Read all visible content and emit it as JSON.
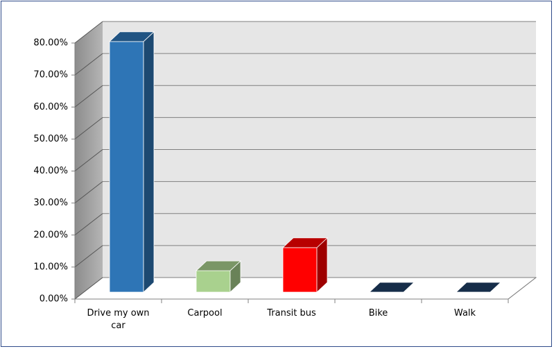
{
  "chart_data": {
    "type": "bar3d",
    "categories": [
      "Drive my own car",
      "Carpool",
      "Transit bus",
      "Bike",
      "Walk"
    ],
    "values": [
      78.3,
      6.7,
      13.9,
      0,
      0
    ],
    "colors": [
      "#2e75b6",
      "#a9d18e",
      "#ff0000",
      "#1f3f66",
      "#1f3f66"
    ],
    "ylim": [
      0,
      80
    ],
    "yticks": [
      {
        "value": 0,
        "label": "0.00%"
      },
      {
        "value": 10,
        "label": "10.00%"
      },
      {
        "value": 20,
        "label": "20.00%"
      },
      {
        "value": 30,
        "label": "30.00%"
      },
      {
        "value": 40,
        "label": "40.00%"
      },
      {
        "value": 50,
        "label": "50.00%"
      },
      {
        "value": 60,
        "label": "60.00%"
      },
      {
        "value": 70,
        "label": "70.00%"
      },
      {
        "value": 80,
        "label": "80.00%"
      }
    ],
    "grid": true
  }
}
